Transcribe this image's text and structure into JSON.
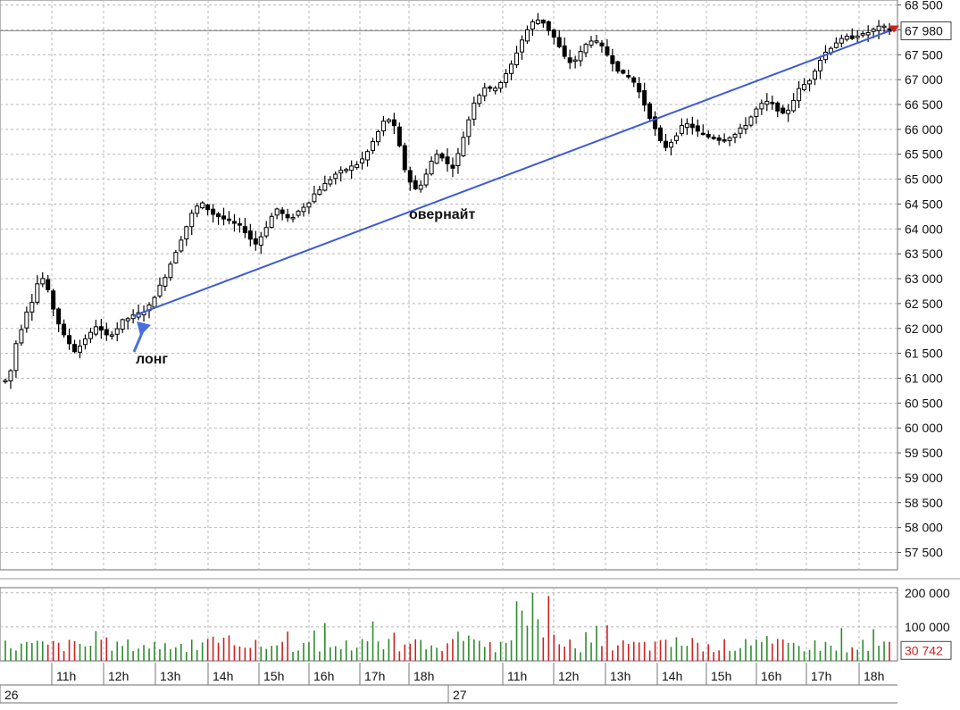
{
  "chart_data": {
    "type": "candlestick",
    "price_axis": {
      "ticks": [
        68500,
        68000,
        67500,
        67000,
        66500,
        66000,
        65500,
        65000,
        64500,
        64000,
        63500,
        63000,
        62500,
        62000,
        61500,
        61000,
        60500,
        60000,
        59500,
        59000,
        58500,
        58000,
        57500
      ],
      "tick_labels": [
        "68 500",
        "68 000",
        "67 500",
        "67 000",
        "66 500",
        "66 000",
        "65 500",
        "65 000",
        "64 500",
        "64 000",
        "63 500",
        "63 000",
        "62 500",
        "62 000",
        "61 500",
        "61 000",
        "60 500",
        "60 000",
        "59 500",
        "59 000",
        "58 500",
        "58 000",
        "57 500"
      ],
      "range": [
        57150,
        68600
      ],
      "last_price": 67980,
      "last_price_label": "67 980"
    },
    "volume_axis": {
      "ticks": [
        200000,
        100000
      ],
      "tick_labels": [
        "200 000",
        "100 000"
      ],
      "range": [
        0,
        210000
      ],
      "last_volume": 30742,
      "last_volume_label": "30 742"
    },
    "time_axis": {
      "hour_labels": [
        "11h",
        "12h",
        "13h",
        "14h",
        "15h",
        "16h",
        "17h",
        "18h",
        "11h",
        "12h",
        "13h",
        "14h",
        "15h",
        "16h",
        "17h",
        "18h"
      ],
      "day_labels": [
        "26",
        "27"
      ]
    },
    "annotations": [
      {
        "text": "лонг",
        "points_to": "entry"
      },
      {
        "text": "овернайт",
        "points_to": "trendline"
      }
    ],
    "trendline": {
      "from": 62250,
      "to": 67980
    },
    "grid": true,
    "colors": {
      "candle": "#000000",
      "volume_up": "#2e8b2e",
      "volume_down": "#cc2222",
      "trendline": "#3b5bd6",
      "arrow": "#4a6ee0",
      "last_price_marker": "#d42020",
      "grid": "#b8b8b8"
    },
    "price_path": [
      60950,
      61150,
      61700,
      62000,
      62350,
      62550,
      62900,
      63000,
      62750,
      62400,
      62100,
      61850,
      61700,
      61550,
      61650,
      61800,
      61900,
      62050,
      61950,
      61850,
      61900,
      62000,
      62150,
      62200,
      62250,
      62300,
      62350,
      62450,
      62650,
      62850,
      63050,
      63300,
      63550,
      63800,
      64050,
      64300,
      64450,
      64500,
      64400,
      64300,
      64250,
      64200,
      64150,
      64100,
      64050,
      63950,
      63800,
      63700,
      63850,
      64050,
      64250,
      64400,
      64300,
      64200,
      64250,
      64350,
      64450,
      64550,
      64700,
      64800,
      64900,
      65000,
      65100,
      65150,
      65200,
      65250,
      65300,
      65400,
      65550,
      65750,
      65950,
      66150,
      66200,
      66050,
      65650,
      65200,
      64950,
      64800,
      64900,
      65100,
      65350,
      65500,
      65450,
      65300,
      65250,
      65500,
      65850,
      66200,
      66550,
      66700,
      66850,
      66800,
      66850,
      66950,
      67100,
      67300,
      67550,
      67800,
      68000,
      68150,
      68200,
      68150,
      68000,
      67850,
      67650,
      67450,
      67350,
      67400,
      67550,
      67700,
      67800,
      67750,
      67650,
      67500,
      67350,
      67200,
      67100,
      67050,
      66950,
      66750,
      66500,
      66250,
      66000,
      65750,
      65650,
      65750,
      65900,
      66050,
      66100,
      66050,
      65950,
      65900,
      65850,
      65850,
      65800,
      65800,
      65850,
      65900,
      66000,
      66100,
      66250,
      66400,
      66500,
      66550,
      66500,
      66400,
      66300,
      66400,
      66600,
      66800,
      66900,
      67000,
      67200,
      67400,
      67550,
      67650,
      67750,
      67800,
      67850,
      67850,
      67900,
      67900,
      67950,
      68000,
      68050,
      68050,
      67980
    ]
  }
}
